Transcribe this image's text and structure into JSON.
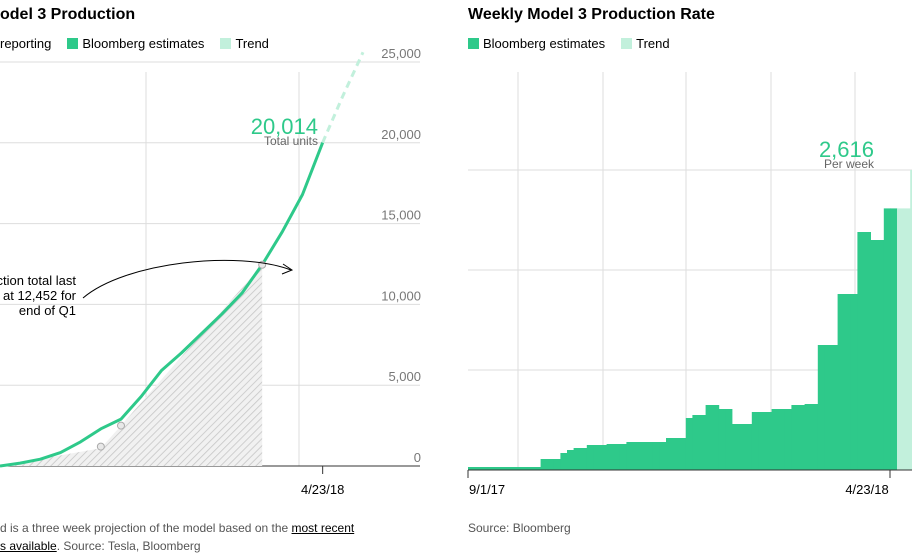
{
  "left": {
    "title": "odel 3 Production",
    "legend": [
      "reporting",
      "Bloomberg estimates",
      "Trend"
    ],
    "annotation": {
      "value": "20,014",
      "unit": "Total units"
    },
    "callout_lines": [
      "ction total last",
      "at 12,452 for",
      "end of Q1"
    ],
    "footnote_line1_prefix": "d is a three week projection of the model based on the ",
    "footnote_line1_link": "most recent",
    "footnote_line2_link": "s available",
    "footnote_line2_suffix": ". Source: Tesla, Bloomberg"
  },
  "right": {
    "title": "Weekly Model 3 Production Rate",
    "legend": [
      "Bloomberg estimates",
      "Trend"
    ],
    "annotation": {
      "value": "2,616",
      "unit": "Per week"
    },
    "footnote": "Source: Bloomberg"
  },
  "colors": {
    "estimate": "#2ec98a",
    "trend": "#c2f0dc",
    "reported": "#bbbbbb",
    "grid": "#dddddd"
  },
  "chart_data": [
    {
      "type": "line",
      "title": "Model 3 Production",
      "x_ticks": [
        "4/23/18"
      ],
      "y_ticks": [
        "0",
        "5,000",
        "10,000",
        "15,000",
        "20,000",
        "25,000"
      ],
      "ylim": [
        0,
        25000
      ],
      "series": [
        {
          "name": "Bloomberg estimates",
          "points": [
            [
              0,
              0
            ],
            [
              1,
              180
            ],
            [
              2,
              420
            ],
            [
              3,
              830
            ],
            [
              4,
              1500
            ],
            [
              5,
              2300
            ],
            [
              6,
              2900
            ],
            [
              7,
              4300
            ],
            [
              8,
              5900
            ],
            [
              9,
              7000
            ],
            [
              10,
              8200
            ],
            [
              11,
              9400
            ],
            [
              12,
              10700
            ],
            [
              13,
              12452
            ],
            [
              14,
              14500
            ],
            [
              15,
              16800
            ],
            [
              16,
              20014
            ]
          ]
        },
        {
          "name": "Trend",
          "points": [
            [
              16,
              20014
            ],
            [
              17,
              22900
            ],
            [
              18,
              25600
            ]
          ]
        },
        {
          "name": "reporting",
          "points": [
            [
              5,
              1200
            ],
            [
              6,
              2500
            ],
            [
              13,
              12452
            ]
          ]
        }
      ]
    },
    {
      "type": "bar",
      "title": "Weekly Model 3 Production Rate",
      "x_ticks": [
        "9/1/17",
        "4/23/18"
      ],
      "y_ticks": [],
      "series": [
        {
          "name": "Bloomberg estimates",
          "values": [
            30,
            30,
            30,
            30,
            30,
            30,
            30,
            30,
            30,
            30,
            30,
            110,
            110,
            110,
            170,
            200,
            220,
            220,
            250,
            250,
            250,
            260,
            260,
            260,
            280,
            280,
            280,
            280,
            280,
            280,
            320,
            320,
            320,
            520,
            550,
            550,
            650,
            650,
            610,
            610,
            460,
            460,
            460,
            580,
            580,
            580,
            610,
            610,
            610,
            650,
            650,
            660,
            660,
            1250,
            1250,
            1250,
            1760,
            1760,
            1760,
            2380,
            2380,
            2300,
            2300,
            2616,
            2616
          ]
        },
        {
          "name": "Trend",
          "values": [
            2616,
            2616,
            3000,
            3000
          ]
        }
      ]
    }
  ]
}
